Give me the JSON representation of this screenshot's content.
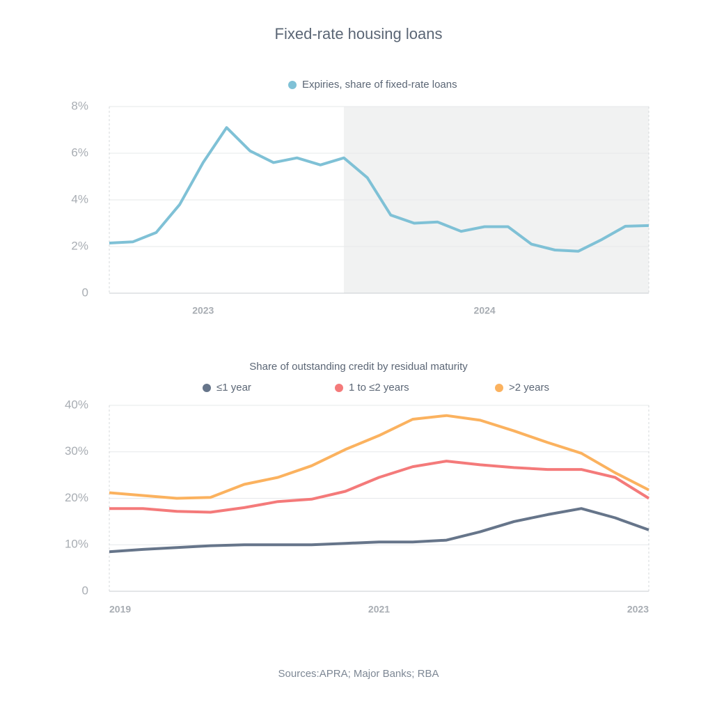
{
  "title": "Fixed-rate housing loans",
  "source": "Sources:APRA; Major Banks; RBA",
  "chart_data": [
    {
      "type": "line",
      "categories": [
        null,
        null,
        null,
        null,
        "2023",
        null,
        null,
        null,
        null,
        null,
        null,
        null,
        null,
        null,
        null,
        null,
        "2024",
        null,
        null,
        null,
        null,
        null,
        null,
        null
      ],
      "series": [
        {
          "name": "Expiries, share of fixed-rate loans",
          "color": "#7fc1d6",
          "values": [
            2.15,
            2.2,
            2.6,
            3.8,
            5.6,
            7.1,
            6.1,
            5.6,
            5.8,
            5.5,
            5.8,
            4.95,
            3.35,
            3.0,
            3.05,
            2.65,
            2.85,
            2.85,
            2.1,
            1.85,
            1.8,
            2.3,
            2.87,
            2.9
          ]
        }
      ],
      "ylim": [
        0,
        8
      ],
      "yticks": [
        0,
        {
          "value": 2,
          "label": "2%"
        },
        {
          "value": 4,
          "label": "4%"
        },
        {
          "value": 6,
          "label": "6%"
        },
        {
          "value": 8,
          "label": "8%"
        }
      ],
      "grid": true,
      "shade_start_index": 10,
      "shade_color": "#f1f2f2"
    },
    {
      "type": "line",
      "subtitle": "Share of outstanding credit by residual maturity",
      "categories": [
        "2019",
        null,
        null,
        null,
        null,
        null,
        null,
        null,
        "2021",
        null,
        null,
        null,
        null,
        null,
        null,
        null,
        "2023"
      ],
      "series": [
        {
          "name": "≤1 year",
          "color": "#66758a",
          "values": [
            8.5,
            9.0,
            9.4,
            9.8,
            10.0,
            10.0,
            10.0,
            10.3,
            10.6,
            10.6,
            11.0,
            12.8,
            15.0,
            16.5,
            17.8,
            15.8,
            13.2
          ]
        },
        {
          "name": "1 to ≤2 years",
          "color": "#f47a7a",
          "values": [
            17.8,
            17.8,
            17.2,
            17.0,
            18.0,
            19.3,
            19.8,
            21.5,
            24.5,
            26.8,
            28.0,
            27.2,
            26.6,
            26.2,
            26.2,
            24.5,
            20.0
          ]
        },
        {
          "name": ">2 years",
          "color": "#fbb25f",
          "values": [
            21.2,
            20.6,
            20.0,
            20.2,
            23.0,
            24.5,
            27.0,
            30.5,
            33.5,
            37.0,
            37.8,
            36.8,
            34.5,
            32.0,
            29.7,
            25.5,
            21.8
          ]
        }
      ],
      "ylim": [
        0,
        40
      ],
      "yticks": [
        0,
        {
          "value": 10,
          "label": "10%"
        },
        {
          "value": 20,
          "label": "20%"
        },
        {
          "value": 30,
          "label": "30%"
        },
        {
          "value": 40,
          "label": "40%"
        }
      ],
      "grid": true
    }
  ]
}
